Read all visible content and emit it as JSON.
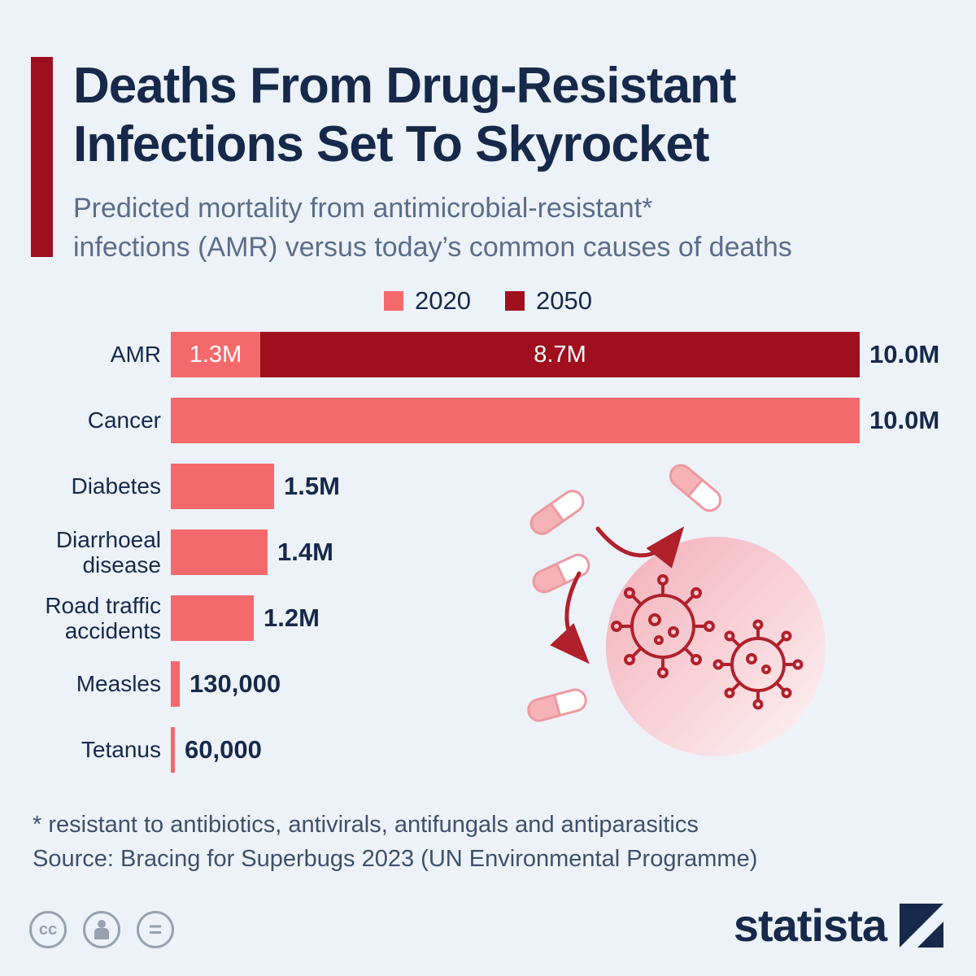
{
  "header": {
    "title_line1": "Deaths From Drug-Resistant",
    "title_line2": "Infections Set To Skyrocket",
    "subtitle_line1": "Predicted mortality from antimicrobial-resistant*",
    "subtitle_line2": "infections (AMR) versus today’s common causes of deaths"
  },
  "legend": {
    "item_2020": "2020",
    "item_2050": "2050"
  },
  "colors": {
    "background": "#edf2f8",
    "series_2020": "#f4696b",
    "series_2050": "#a00f1d",
    "accent_bar": "#9d0f1f",
    "title_navy": "#17294a"
  },
  "chart_data": {
    "type": "bar",
    "orientation": "horizontal",
    "title": "Predicted mortality from antimicrobial-resistant infections (AMR) versus today's common causes of deaths",
    "unit": "deaths, millions",
    "xlim": [
      0,
      10.0
    ],
    "series_names": [
      "2020",
      "2050"
    ],
    "categories": [
      "AMR",
      "Cancer",
      "Diabetes",
      "Diarrhoeal disease",
      "Road traffic accidents",
      "Measles",
      "Tetanus"
    ],
    "series": [
      {
        "name": "2020",
        "values": [
          1.3,
          10.0,
          1.5,
          1.4,
          1.2,
          0.13,
          0.06
        ]
      },
      {
        "name": "2050",
        "values": [
          8.7,
          0,
          0,
          0,
          0,
          0,
          0
        ]
      }
    ],
    "rows": [
      {
        "category": "AMR",
        "v2020": 1.3,
        "v2050": 8.7,
        "label_2020": "1.3M",
        "label_2050": "8.7M",
        "total_label": "10.0M"
      },
      {
        "category": "Cancer",
        "v2020": 10.0,
        "v2050": 0,
        "label_2020": "",
        "label_2050": "",
        "total_label": "10.0M"
      },
      {
        "category": "Diabetes",
        "v2020": 1.5,
        "v2050": 0,
        "label_2020": "",
        "label_2050": "",
        "total_label": "1.5M"
      },
      {
        "category": "Diarrhoeal disease",
        "v2020": 1.4,
        "v2050": 0,
        "label_2020": "",
        "label_2050": "",
        "total_label": "1.4M"
      },
      {
        "category": "Road traffic accidents",
        "v2020": 1.2,
        "v2050": 0,
        "label_2020": "",
        "label_2050": "",
        "total_label": "1.2M"
      },
      {
        "category": "Measles",
        "v2020": 0.13,
        "v2050": 0,
        "label_2020": "",
        "label_2050": "",
        "total_label": "130,000"
      },
      {
        "category": "Tetanus",
        "v2020": 0.06,
        "v2050": 0,
        "label_2020": "",
        "label_2050": "",
        "total_label": "60,000"
      }
    ]
  },
  "footer": {
    "footnote": "* resistant to antibiotics, antivirals, antifungals and antiparasitics",
    "source": "Source: Bracing for Superbugs 2023 (UN Environmental Programme)",
    "brand": "statista",
    "badges": [
      "cc",
      "attribution",
      "equal"
    ]
  }
}
